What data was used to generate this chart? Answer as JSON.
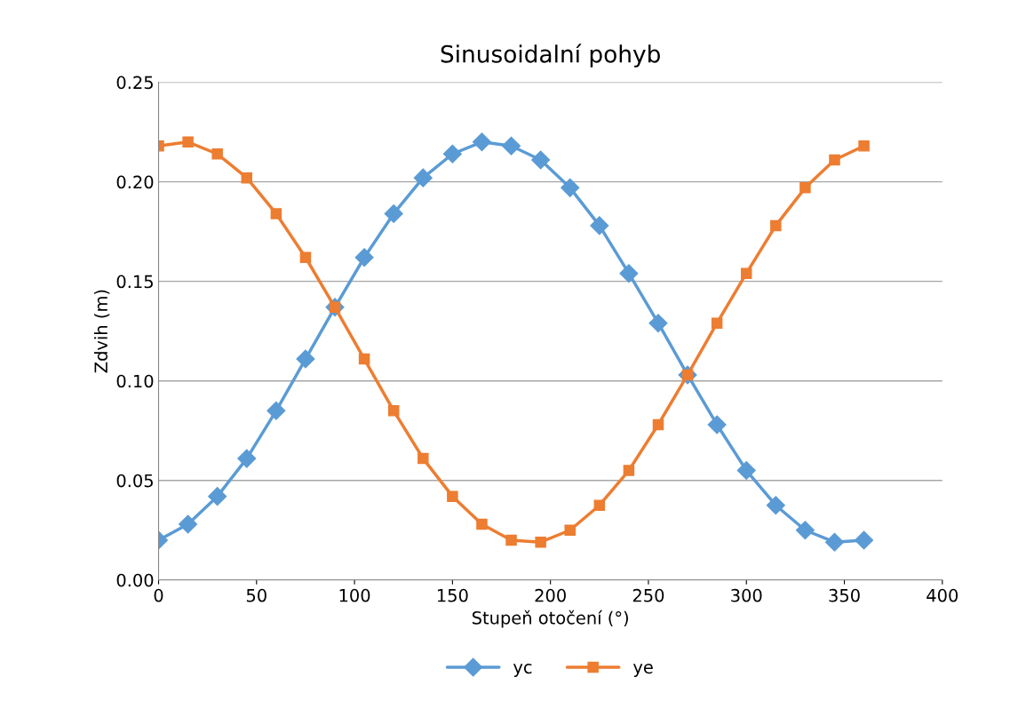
{
  "chart_data": {
    "type": "line",
    "title": "Sinusoidalní pohyb",
    "xlabel": "Stupeň otočení (°)",
    "ylabel": "Zdvih (m)",
    "x": [
      0,
      15,
      30,
      45,
      60,
      75,
      90,
      105,
      120,
      135,
      150,
      165,
      180,
      195,
      210,
      225,
      240,
      255,
      270,
      285,
      300,
      315,
      330,
      345,
      360
    ],
    "series": [
      {
        "name": "yc",
        "color": "#5b9bd5",
        "marker": "diamond",
        "values": [
          0.02,
          0.028,
          0.042,
          0.061,
          0.085,
          0.111,
          0.137,
          0.162,
          0.184,
          0.202,
          0.214,
          0.22,
          0.218,
          0.211,
          0.197,
          0.178,
          0.154,
          0.129,
          0.103,
          0.078,
          0.055,
          0.0375,
          0.025,
          0.019,
          0.02
        ]
      },
      {
        "name": "ye",
        "color": "#ed7d31",
        "marker": "square",
        "values": [
          0.218,
          0.22,
          0.214,
          0.202,
          0.184,
          0.162,
          0.137,
          0.111,
          0.085,
          0.061,
          0.042,
          0.028,
          0.02,
          0.019,
          0.025,
          0.0375,
          0.055,
          0.078,
          0.103,
          0.129,
          0.154,
          0.178,
          0.197,
          0.211,
          0.218
        ]
      }
    ],
    "xlim": [
      0,
      400
    ],
    "xticks": [
      0,
      50,
      100,
      150,
      200,
      250,
      300,
      350,
      400
    ],
    "ylim": [
      0,
      0.25
    ],
    "yticks": [
      {
        "value": 0,
        "label": "0.00"
      },
      {
        "value": 0.05,
        "label": "0.05"
      },
      {
        "value": 0.1,
        "label": "0.10"
      },
      {
        "value": 0.15,
        "label": "0.15"
      },
      {
        "value": 0.2,
        "label": "0.20"
      },
      {
        "value": 0.25,
        "label": "0.25"
      }
    ],
    "grid": "y",
    "legend": "bottom",
    "line_style": "solid"
  }
}
